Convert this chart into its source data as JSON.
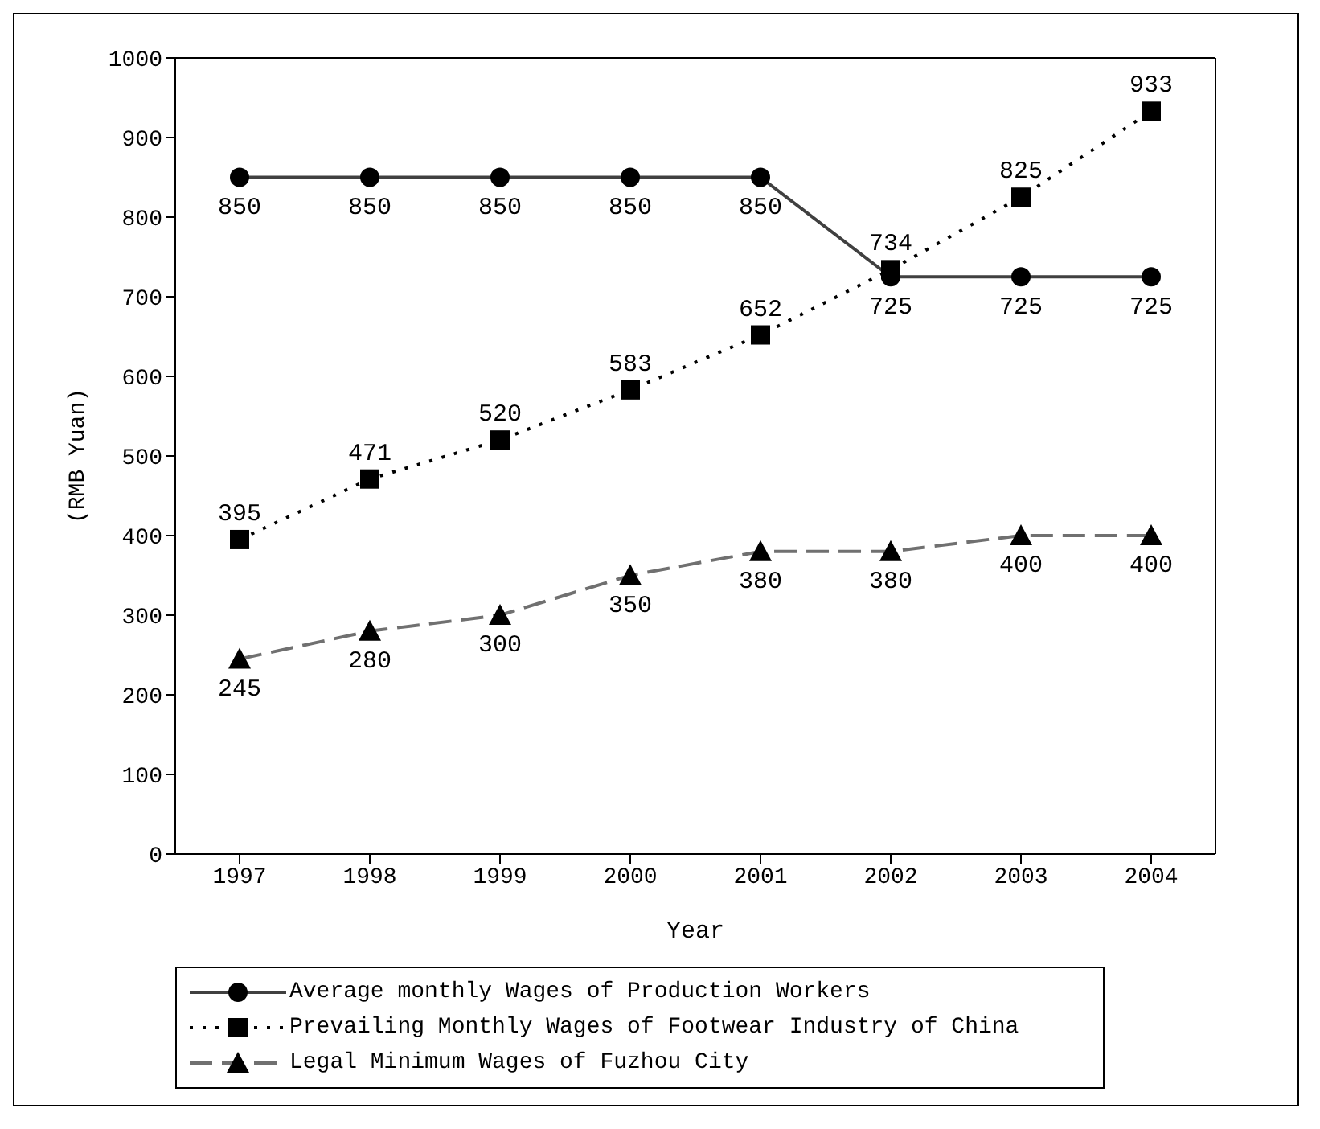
{
  "chart_data": {
    "type": "line",
    "xlabel": "Year",
    "ylabel": "(RMB Yuan)",
    "categories": [
      "1997",
      "1998",
      "1999",
      "2000",
      "2001",
      "2002",
      "2003",
      "2004"
    ],
    "series": [
      {
        "name": "Average monthly Wages of Production Workers",
        "color": "#404040",
        "marker": "circle",
        "line_style": "solid",
        "values": [
          850,
          850,
          850,
          850,
          850,
          725,
          725,
          725
        ]
      },
      {
        "name": "Prevailing Monthly Wages of Footwear Industry of China",
        "color": "#000000",
        "marker": "square",
        "line_style": "dotted",
        "values": [
          395,
          471,
          520,
          583,
          652,
          734,
          825,
          933
        ]
      },
      {
        "name": "Legal Minimum Wages of Fuzhou City",
        "color": "#707070",
        "marker": "triangle",
        "line_style": "dashed",
        "values": [
          245,
          280,
          300,
          350,
          380,
          380,
          400,
          400
        ]
      }
    ],
    "ylim": [
      0,
      1000
    ],
    "yticks": [
      0,
      100,
      200,
      300,
      400,
      500,
      600,
      700,
      800,
      900,
      1000
    ],
    "grid": false,
    "legend": "bottom",
    "data_labels": true
  }
}
